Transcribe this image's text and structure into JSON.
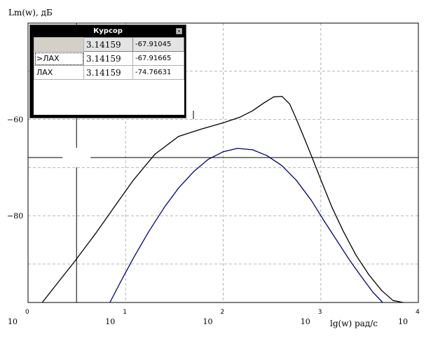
{
  "y_axis_label": "Lm(w), дБ",
  "x_axis_label": "lg(w)  рад/с",
  "cursor_window": {
    "title": "Курсор",
    "close_glyph": "×",
    "header": {
      "name": "",
      "x": "3.14159",
      "y": "-67.91045"
    },
    "rows": [
      {
        "name": "ЛАХ",
        "prefix": ">",
        "x": "3.14159",
        "y": "-67.91665"
      },
      {
        "name": "ЛАХ",
        "prefix": "",
        "x": "3.14159",
        "y": "-74.76631"
      }
    ]
  },
  "colors": {
    "curve_1": "#000000",
    "curve_2": "#000080",
    "grid": "#b4b4b4",
    "cursor_line": "#000000"
  },
  "chart_data": {
    "type": "line",
    "title": "",
    "xlabel": "lg(w)  рад/с",
    "ylabel": "Lm(w), дБ",
    "x_scale": "log",
    "xlim": [
      1,
      10000
    ],
    "ylim": [
      -98,
      -40
    ],
    "x_ticks": [
      {
        "base": "10",
        "exp": "0"
      },
      {
        "base": "10",
        "exp": "1"
      },
      {
        "base": "10",
        "exp": "2"
      },
      {
        "base": "10",
        "exp": "3"
      },
      {
        "base": "10",
        "exp": "4"
      }
    ],
    "y_ticks": [
      {
        "value": -60,
        "label": "−60"
      },
      {
        "value": -80,
        "label": "−80"
      }
    ],
    "grid": true,
    "cursor": {
      "x": 3.14159,
      "y": -67.91045
    },
    "series": [
      {
        "color": "#000000",
        "x": [
          1.4,
          2,
          3,
          5,
          8,
          12,
          20,
          35,
          60,
          100,
          150,
          200,
          260,
          330,
          400,
          480,
          550,
          650,
          800,
          1000,
          1300,
          1700,
          2300,
          3100,
          4200,
          5500,
          7000
        ],
        "y": [
          -98,
          -94,
          -89.5,
          -83.5,
          -77.6,
          -72.6,
          -67.2,
          -63.5,
          -62,
          -60.7,
          -59.5,
          -58.2,
          -56.6,
          -55.3,
          -55.2,
          -56.8,
          -59.5,
          -63,
          -67.5,
          -72.5,
          -78.2,
          -83.2,
          -88.2,
          -92.2,
          -95.5,
          -97.6,
          -98
        ]
      },
      {
        "color": "#000080",
        "x": [
          6.9,
          9,
          12,
          17,
          25,
          35,
          50,
          70,
          100,
          140,
          200,
          280,
          400,
          560,
          800,
          1100,
          1500,
          2000,
          2600,
          3400,
          4300
        ],
        "y": [
          -98,
          -93.5,
          -88.8,
          -83.5,
          -78.2,
          -74.2,
          -70.8,
          -68.3,
          -66.7,
          -66,
          -66.3,
          -67.5,
          -69.6,
          -72.6,
          -76.8,
          -81.3,
          -85.5,
          -89.4,
          -92.6,
          -95.8,
          -98
        ]
      }
    ]
  }
}
